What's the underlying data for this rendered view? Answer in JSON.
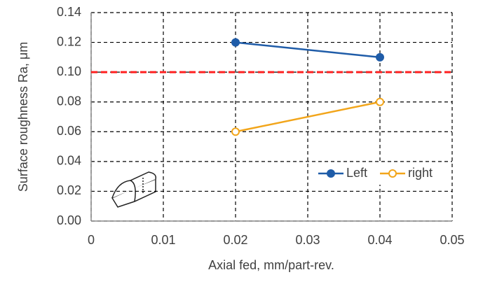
{
  "chart_data": {
    "type": "line",
    "x_label": "Axial fed, mm/part-rev.",
    "y_label": "Surface roughness Ra, μm",
    "series": [
      {
        "name": "Left",
        "color": "#1f5ca8",
        "marker": "filled",
        "x": [
          0.02,
          0.04
        ],
        "values": [
          0.12,
          0.11
        ]
      },
      {
        "name": "right",
        "color": "#f2a51a",
        "marker": "open",
        "x": [
          0.02,
          0.04
        ],
        "values": [
          0.06,
          0.08
        ]
      }
    ],
    "reference_line": {
      "value": 0.1,
      "color": "#ff2020"
    },
    "xlim": [
      0,
      0.05
    ],
    "xticks": [
      0,
      0.01,
      0.02,
      0.03,
      0.04,
      0.05
    ],
    "ylim": [
      0,
      0.14
    ],
    "yticks": [
      {
        "value": 0,
        "label": "0.00"
      },
      0.02,
      0.04,
      0.06,
      0.08,
      {
        "value": 0.1,
        "label": "0.10"
      },
      0.12,
      0.14
    ],
    "grid": true,
    "legend": "lower right"
  }
}
